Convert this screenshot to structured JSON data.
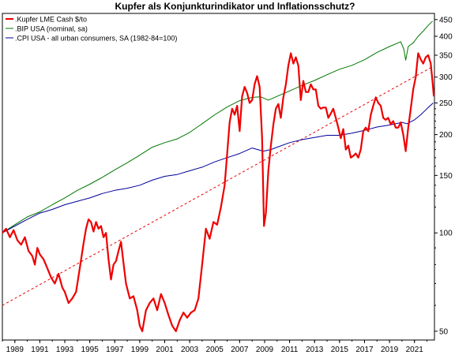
{
  "chart_data": {
    "type": "line",
    "title": "Kupfer als Konjunkturindikator und Inflationsschutz?",
    "x_range": [
      1988,
      2022.6
    ],
    "y_scale": "log",
    "ylim": [
      47,
      470
    ],
    "y_ticks": [
      50,
      100,
      150,
      200,
      250,
      300,
      350,
      400,
      450
    ],
    "x_ticks": [
      1989,
      1991,
      1993,
      1995,
      1997,
      1999,
      2001,
      2003,
      2005,
      2007,
      2009,
      2011,
      2013,
      2015,
      2017,
      2019,
      2021
    ],
    "grid": false,
    "legend_position": "top-left",
    "series": [
      {
        "name": ".Kupfer LME Cash $/to",
        "color": "#ee0000",
        "points": [
          [
            1988.0,
            100
          ],
          [
            1988.3,
            103
          ],
          [
            1988.6,
            97
          ],
          [
            1988.9,
            102
          ],
          [
            1989.2,
            95
          ],
          [
            1989.5,
            92
          ],
          [
            1989.8,
            97
          ],
          [
            1990.1,
            88
          ],
          [
            1990.4,
            85
          ],
          [
            1990.6,
            80
          ],
          [
            1990.8,
            90
          ],
          [
            1991.0,
            86
          ],
          [
            1991.3,
            83
          ],
          [
            1991.6,
            78
          ],
          [
            1991.9,
            73
          ],
          [
            1992.2,
            70
          ],
          [
            1992.5,
            75
          ],
          [
            1992.8,
            68
          ],
          [
            1993.0,
            66
          ],
          [
            1993.3,
            61
          ],
          [
            1993.6,
            63
          ],
          [
            1993.9,
            66
          ],
          [
            1994.2,
            78
          ],
          [
            1994.5,
            93
          ],
          [
            1994.7,
            103
          ],
          [
            1994.9,
            110
          ],
          [
            1995.1,
            108
          ],
          [
            1995.3,
            101
          ],
          [
            1995.5,
            108
          ],
          [
            1995.7,
            103
          ],
          [
            1995.9,
            105
          ],
          [
            1996.1,
            97
          ],
          [
            1996.3,
            100
          ],
          [
            1996.5,
            83
          ],
          [
            1996.7,
            72
          ],
          [
            1996.9,
            80
          ],
          [
            1997.1,
            82
          ],
          [
            1997.3,
            88
          ],
          [
            1997.5,
            94
          ],
          [
            1997.7,
            81
          ],
          [
            1997.9,
            70
          ],
          [
            1998.2,
            63
          ],
          [
            1998.5,
            64
          ],
          [
            1998.8,
            58
          ],
          [
            1999.0,
            52
          ],
          [
            1999.2,
            50
          ],
          [
            1999.5,
            58
          ],
          [
            1999.8,
            61
          ],
          [
            2000.1,
            63
          ],
          [
            2000.4,
            58
          ],
          [
            2000.7,
            65
          ],
          [
            2001.0,
            61
          ],
          [
            2001.3,
            56
          ],
          [
            2001.6,
            52
          ],
          [
            2001.9,
            50
          ],
          [
            2002.2,
            54
          ],
          [
            2002.5,
            57
          ],
          [
            2002.8,
            55
          ],
          [
            2003.1,
            57
          ],
          [
            2003.4,
            58
          ],
          [
            2003.7,
            63
          ],
          [
            2004.0,
            80
          ],
          [
            2004.3,
            103
          ],
          [
            2004.6,
            96
          ],
          [
            2004.9,
            108
          ],
          [
            2005.2,
            106
          ],
          [
            2005.5,
            120
          ],
          [
            2005.8,
            140
          ],
          [
            2006.0,
            175
          ],
          [
            2006.2,
            218
          ],
          [
            2006.4,
            240
          ],
          [
            2006.6,
            230
          ],
          [
            2006.8,
            245
          ],
          [
            2007.0,
            205
          ],
          [
            2007.2,
            262
          ],
          [
            2007.4,
            280
          ],
          [
            2007.6,
            268
          ],
          [
            2007.8,
            250
          ],
          [
            2008.0,
            255
          ],
          [
            2008.2,
            285
          ],
          [
            2008.4,
            302
          ],
          [
            2008.6,
            280
          ],
          [
            2008.8,
            195
          ],
          [
            2008.95,
            105
          ],
          [
            2009.1,
            115
          ],
          [
            2009.3,
            155
          ],
          [
            2009.5,
            185
          ],
          [
            2009.7,
            215
          ],
          [
            2009.9,
            240
          ],
          [
            2010.1,
            248
          ],
          [
            2010.3,
            225
          ],
          [
            2010.5,
            260
          ],
          [
            2010.7,
            285
          ],
          [
            2010.9,
            325
          ],
          [
            2011.1,
            355
          ],
          [
            2011.3,
            330
          ],
          [
            2011.5,
            345
          ],
          [
            2011.7,
            325
          ],
          [
            2011.9,
            255
          ],
          [
            2012.1,
            292
          ],
          [
            2012.3,
            270
          ],
          [
            2012.5,
            270
          ],
          [
            2012.7,
            285
          ],
          [
            2012.9,
            275
          ],
          [
            2013.1,
            275
          ],
          [
            2013.3,
            245
          ],
          [
            2013.5,
            240
          ],
          [
            2013.7,
            242
          ],
          [
            2013.9,
            242
          ],
          [
            2014.1,
            225
          ],
          [
            2014.3,
            232
          ],
          [
            2014.5,
            240
          ],
          [
            2014.7,
            225
          ],
          [
            2014.9,
            210
          ],
          [
            2015.1,
            195
          ],
          [
            2015.3,
            208
          ],
          [
            2015.5,
            180
          ],
          [
            2015.7,
            185
          ],
          [
            2015.9,
            170
          ],
          [
            2016.1,
            172
          ],
          [
            2016.3,
            175
          ],
          [
            2016.5,
            170
          ],
          [
            2016.7,
            180
          ],
          [
            2016.9,
            205
          ],
          [
            2017.1,
            210
          ],
          [
            2017.3,
            205
          ],
          [
            2017.5,
            230
          ],
          [
            2017.7,
            245
          ],
          [
            2017.9,
            260
          ],
          [
            2018.1,
            250
          ],
          [
            2018.3,
            245
          ],
          [
            2018.5,
            225
          ],
          [
            2018.7,
            222
          ],
          [
            2018.9,
            225
          ],
          [
            2019.1,
            215
          ],
          [
            2019.3,
            220
          ],
          [
            2019.5,
            210
          ],
          [
            2019.7,
            210
          ],
          [
            2019.9,
            218
          ],
          [
            2020.1,
            200
          ],
          [
            2020.3,
            178
          ],
          [
            2020.5,
            210
          ],
          [
            2020.7,
            240
          ],
          [
            2020.9,
            275
          ],
          [
            2021.1,
            300
          ],
          [
            2021.3,
            355
          ],
          [
            2021.5,
            340
          ],
          [
            2021.7,
            330
          ],
          [
            2021.9,
            345
          ],
          [
            2022.1,
            350
          ],
          [
            2022.3,
            330
          ],
          [
            2022.45,
            290
          ],
          [
            2022.55,
            262
          ]
        ]
      },
      {
        "name": ".BIP USA (nominal, sa)",
        "color": "#007700",
        "points": [
          [
            1988.0,
            100
          ],
          [
            1989.0,
            106
          ],
          [
            1990.0,
            112
          ],
          [
            1991.0,
            116
          ],
          [
            1992.0,
            122
          ],
          [
            1993.0,
            128
          ],
          [
            1994.0,
            135
          ],
          [
            1995.0,
            141
          ],
          [
            1996.0,
            148
          ],
          [
            1997.0,
            156
          ],
          [
            1998.0,
            164
          ],
          [
            1999.0,
            173
          ],
          [
            2000.0,
            183
          ],
          [
            2001.0,
            189
          ],
          [
            2002.0,
            194
          ],
          [
            2003.0,
            203
          ],
          [
            2004.0,
            216
          ],
          [
            2005.0,
            230
          ],
          [
            2006.0,
            243
          ],
          [
            2007.0,
            254
          ],
          [
            2008.0,
            260
          ],
          [
            2008.7,
            261
          ],
          [
            2009.3,
            255
          ],
          [
            2010.0,
            262
          ],
          [
            2011.0,
            272
          ],
          [
            2012.0,
            283
          ],
          [
            2013.0,
            293
          ],
          [
            2014.0,
            305
          ],
          [
            2015.0,
            317
          ],
          [
            2016.0,
            326
          ],
          [
            2017.0,
            339
          ],
          [
            2018.0,
            357
          ],
          [
            2019.0,
            372
          ],
          [
            2019.9,
            385
          ],
          [
            2020.15,
            365
          ],
          [
            2020.3,
            338
          ],
          [
            2020.5,
            372
          ],
          [
            2020.9,
            382
          ],
          [
            2021.3,
            400
          ],
          [
            2021.7,
            415
          ],
          [
            2022.1,
            432
          ],
          [
            2022.45,
            445
          ]
        ]
      },
      {
        "name": ".CPI USA - all urban consumers, SA (1982-84=100)",
        "color": "#000099",
        "points": [
          [
            1988.0,
            100
          ],
          [
            1989.0,
            105
          ],
          [
            1990.0,
            110
          ],
          [
            1991.0,
            115
          ],
          [
            1992.0,
            118
          ],
          [
            1993.0,
            122
          ],
          [
            1994.0,
            125
          ],
          [
            1995.0,
            128
          ],
          [
            1996.0,
            132
          ],
          [
            1997.0,
            135
          ],
          [
            1998.0,
            137
          ],
          [
            1999.0,
            140
          ],
          [
            2000.0,
            145
          ],
          [
            2001.0,
            149
          ],
          [
            2002.0,
            151
          ],
          [
            2003.0,
            155
          ],
          [
            2004.0,
            159
          ],
          [
            2005.0,
            165
          ],
          [
            2006.0,
            170
          ],
          [
            2007.0,
            175
          ],
          [
            2008.0,
            182
          ],
          [
            2008.9,
            178
          ],
          [
            2009.5,
            180
          ],
          [
            2010.0,
            183
          ],
          [
            2011.0,
            189
          ],
          [
            2012.0,
            193
          ],
          [
            2013.0,
            196
          ],
          [
            2014.0,
            199
          ],
          [
            2015.0,
            199
          ],
          [
            2016.0,
            202
          ],
          [
            2017.0,
            206
          ],
          [
            2018.0,
            211
          ],
          [
            2019.0,
            214
          ],
          [
            2020.0,
            218
          ],
          [
            2020.4,
            216
          ],
          [
            2021.0,
            222
          ],
          [
            2021.5,
            230
          ],
          [
            2022.0,
            240
          ],
          [
            2022.5,
            250
          ]
        ]
      },
      {
        "name": "",
        "color": "#ee0000",
        "dashed": true,
        "points": [
          [
            1988.0,
            60
          ],
          [
            2022.4,
            322
          ]
        ]
      }
    ]
  }
}
